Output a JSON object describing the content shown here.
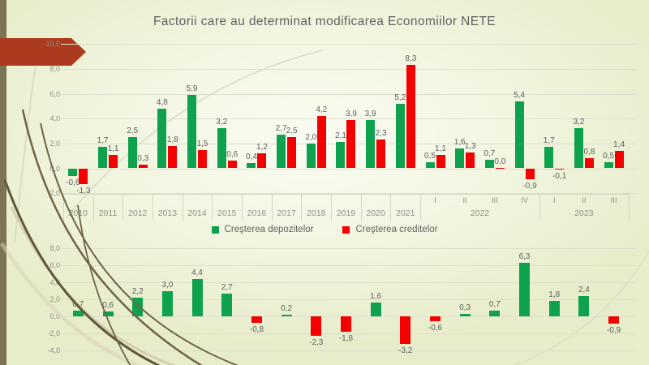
{
  "slide": {
    "title": "Factorii care au determinat modificarea Economiilor NETE"
  },
  "legend": [
    {
      "label": "Creşterea depozitelor",
      "color": "#0ea24f"
    },
    {
      "label": "Creşterea creditelor",
      "color": "#f40000"
    }
  ],
  "colors": {
    "deposits_green": "#0ea24f",
    "credits_red": "#f40000",
    "arrow_red": "#ac3a1e",
    "edge_stripe_olive": "#7c7353",
    "gridline": "#dce0ce",
    "text_gray": "#5a605d"
  },
  "chart_data": [
    {
      "type": "bar",
      "title": "",
      "xlabel": "",
      "ylabel": "",
      "grid": true,
      "legend_position": "bottom",
      "ylim": [
        -2,
        10
      ],
      "yticks": [
        10,
        8,
        6,
        4,
        2,
        0,
        -2
      ],
      "categories": [
        "2010",
        "2011",
        "2012",
        "2013",
        "2014",
        "2015",
        "2016",
        "2017",
        "2018",
        "2019",
        "2020",
        "2021",
        "I",
        "II",
        "III",
        "IV",
        "I",
        "II",
        "III"
      ],
      "category_groups": [
        {
          "label": "2022",
          "from": 12,
          "to": 15
        },
        {
          "label": "2023",
          "from": 16,
          "to": 18
        }
      ],
      "series": [
        {
          "name": "Creşterea depozitelor",
          "color": "#0ea24f",
          "values": [
            -0.6,
            1.7,
            2.5,
            4.8,
            5.9,
            3.2,
            0.4,
            2.7,
            2.0,
            2.1,
            3.9,
            5.2,
            0.5,
            1.6,
            0.7,
            5.4,
            1.7,
            3.2,
            0.5
          ]
        },
        {
          "name": "Creşterea creditelor",
          "color": "#f40000",
          "values": [
            -1.3,
            1.1,
            0.3,
            1.8,
            1.5,
            0.6,
            1.2,
            2.5,
            4.2,
            3.9,
            2.3,
            8.3,
            1.1,
            1.3,
            0.0,
            -0.9,
            -0.1,
            0.8,
            1.4
          ]
        }
      ]
    },
    {
      "type": "bar",
      "title": "",
      "xlabel": "",
      "ylabel": "",
      "grid": true,
      "x_axis_labels_visible": false,
      "ylim": [
        -4,
        8
      ],
      "yticks": [
        8,
        6,
        4,
        2,
        0,
        -2,
        -4
      ],
      "categories": [
        "2010",
        "2011",
        "2012",
        "2013",
        "2014",
        "2015",
        "2016",
        "2017",
        "2018",
        "2019",
        "2020",
        "2021",
        "2022-I",
        "2022-II",
        "2022-III",
        "2022-IV",
        "2023-I",
        "2023-II",
        "2023-III"
      ],
      "positive_color": "#0ea24f",
      "negative_color": "#f40000",
      "values": [
        0.7,
        0.6,
        2.2,
        3.0,
        4.4,
        2.7,
        -0.8,
        0.2,
        -2.3,
        -1.8,
        1.6,
        -3.2,
        -0.6,
        0.3,
        0.7,
        6.3,
        1.8,
        2.4,
        -0.9
      ]
    }
  ]
}
